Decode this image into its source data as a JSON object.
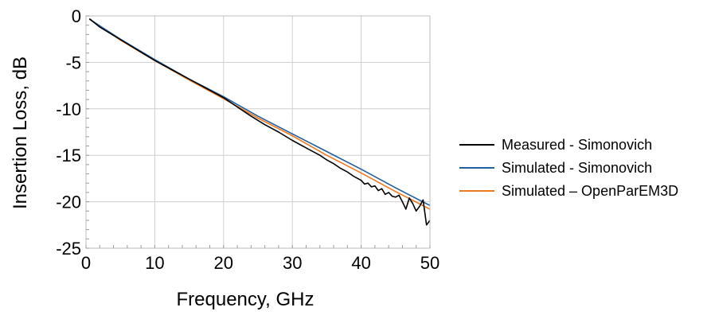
{
  "chart_data": {
    "type": "line",
    "title": "",
    "xlabel": "Frequency, GHz",
    "ylabel": "Insertion Loss, dB",
    "xlim": [
      0,
      50
    ],
    "ylim": [
      -25,
      0
    ],
    "xticks": [
      0,
      10,
      20,
      30,
      40,
      50
    ],
    "yticks": [
      0,
      -5,
      -10,
      -15,
      -20,
      -25
    ],
    "grid": true,
    "legend_position": "right",
    "series": [
      {
        "name": "Measured - Simonovich",
        "color": "#000000",
        "x": [
          0.5,
          2,
          4,
          6,
          8,
          10,
          12,
          14,
          16,
          18,
          20,
          22,
          24,
          26,
          28,
          30,
          32,
          34,
          35,
          36,
          37,
          38,
          39,
          40,
          40.5,
          41,
          41.5,
          42,
          42.5,
          43,
          43.5,
          44,
          44.5,
          45,
          45.5,
          46,
          46.5,
          47,
          47.5,
          48,
          48.5,
          49,
          49.5,
          50
        ],
        "y": [
          -0.3,
          -1.2,
          -2.1,
          -3.0,
          -3.9,
          -4.8,
          -5.6,
          -6.4,
          -7.2,
          -8.0,
          -8.8,
          -9.8,
          -10.8,
          -11.7,
          -12.5,
          -13.4,
          -14.2,
          -15.0,
          -15.5,
          -15.9,
          -16.4,
          -16.8,
          -17.3,
          -17.7,
          -18.1,
          -18.0,
          -18.4,
          -18.3,
          -18.8,
          -18.6,
          -19.2,
          -19.0,
          -19.4,
          -19.5,
          -19.3,
          -20.0,
          -20.8,
          -19.6,
          -20.2,
          -21.0,
          -20.5,
          -19.8,
          -22.5,
          -22.0
        ]
      },
      {
        "name": "Simulated - Simonovich",
        "color": "#1f5fa0",
        "x": [
          0.5,
          5,
          10,
          15,
          20,
          25,
          30,
          35,
          40,
          45,
          50
        ],
        "y": [
          -0.35,
          -2.5,
          -4.7,
          -6.8,
          -8.7,
          -10.8,
          -12.7,
          -14.6,
          -16.5,
          -18.5,
          -20.4
        ]
      },
      {
        "name": "Simulated – OpenParEM3D",
        "color": "#f07820",
        "x": [
          0.5,
          5,
          10,
          15,
          20,
          25,
          30,
          35,
          40,
          45,
          50
        ],
        "y": [
          -0.35,
          -2.6,
          -4.8,
          -6.9,
          -8.9,
          -11.0,
          -12.9,
          -15.0,
          -16.9,
          -18.9,
          -20.8
        ]
      }
    ]
  }
}
